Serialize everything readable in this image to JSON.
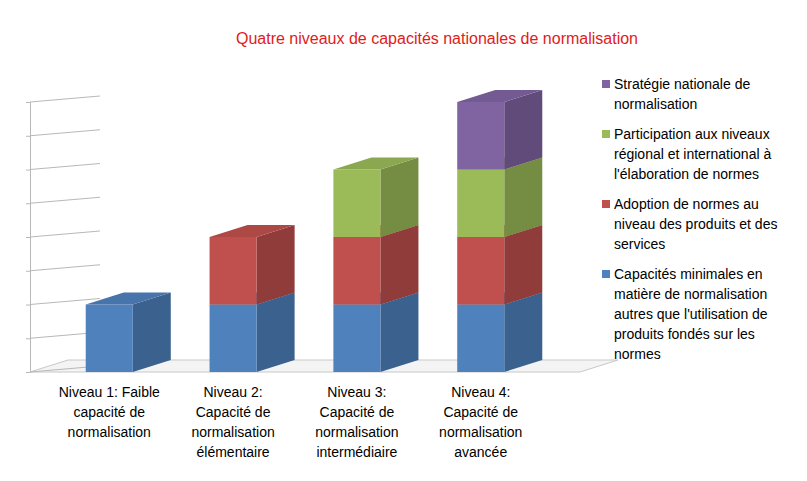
{
  "chart_data": {
    "type": "bar",
    "title": "Quatre niveaux de capacités nationales de normalisation",
    "categories": [
      "Niveau 1: Faible capacité de normalisation",
      "Niveau 2: Capacité de normalisation élémentaire",
      "Niveau 3: Capacité de normalisation intermédiaire",
      "Niveau 4: Capacité de normalisation avancée"
    ],
    "series": [
      {
        "name": "Capacités minimales en matière de normalisation autres que l'utilisation de produits fondés sur les normes",
        "color": "#4f81bd",
        "values": [
          2,
          2,
          2,
          2
        ]
      },
      {
        "name": "Adoption de normes au niveau des produits et des services",
        "color": "#c0504d",
        "values": [
          null,
          2,
          2,
          2
        ]
      },
      {
        "name": "Participation aux niveaux régional et international à l'élaboration de normes",
        "color": "#9bbb59",
        "values": [
          null,
          null,
          2,
          2
        ]
      },
      {
        "name": "Stratégie nationale de normalisation",
        "color": "#8064a2",
        "values": [
          null,
          null,
          null,
          2
        ]
      }
    ],
    "stacked": true,
    "ylim": [
      0,
      8
    ],
    "yticks": [
      0,
      1,
      2,
      3,
      4,
      5,
      6,
      7,
      8
    ],
    "grid": true,
    "tick_labels": "x",
    "legend": "right"
  }
}
